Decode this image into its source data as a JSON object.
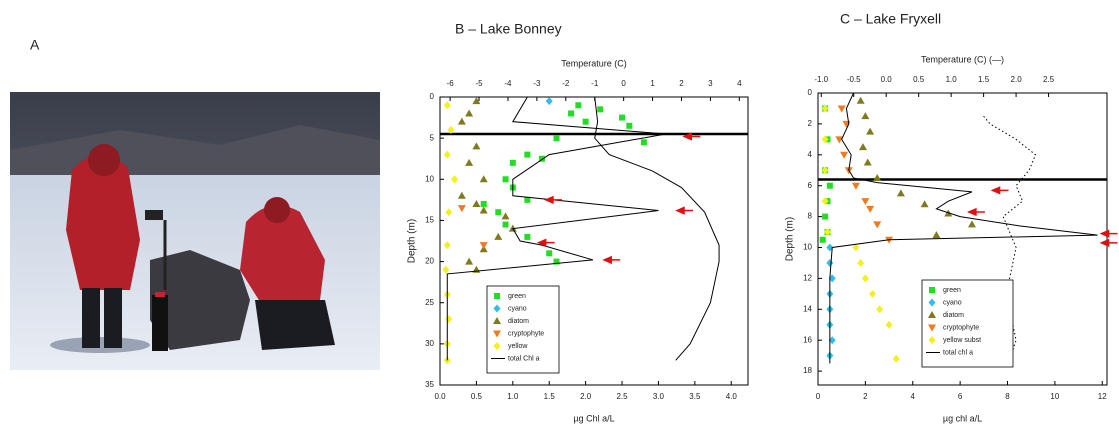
{
  "panel_a": {
    "label": "A"
  },
  "chart_data": [
    {
      "type": "profile",
      "title": "B – Lake Bonney",
      "x_label": "µg Chl a/L",
      "x2_label": "Temperature (C)",
      "y_label": "Depth (m)",
      "xlim": [
        0,
        4.23
      ],
      "xticks": [
        {
          "value": 0,
          "label": "0.0"
        },
        {
          "value": 0.5,
          "label": "0.5"
        },
        {
          "value": 1,
          "label": "1.0"
        },
        {
          "value": 1.5,
          "label": "1.5"
        },
        {
          "value": 2,
          "label": "2.0"
        },
        {
          "value": 2.5,
          "label": "2.5"
        },
        {
          "value": 3,
          "label": "3.0"
        },
        {
          "value": 3.5,
          "label": "3.5"
        },
        {
          "value": 4,
          "label": "4.0"
        }
      ],
      "x2lim": [
        -6.35,
        4.3
      ],
      "x2ticks": [
        -6,
        -5,
        -4,
        -3,
        -2,
        -1,
        0,
        1,
        2,
        3,
        4
      ],
      "ylim": [
        0,
        35
      ],
      "yticks": [
        0,
        5,
        10,
        15,
        20,
        25,
        30,
        35
      ],
      "y_inverted": true,
      "divider_depth": 4.5,
      "legend": "lower left",
      "series": [
        {
          "name": "green",
          "color": "#22dd22",
          "marker": "square",
          "x": [
            1.9,
            2.2,
            1.8,
            2.5,
            2.0,
            2.6,
            1.6,
            2.8,
            1.2,
            1.4,
            1.0,
            0.9,
            1.0,
            1.2,
            0.6,
            0.8,
            0.9,
            1.2,
            1.5,
            1.6
          ],
          "y": [
            1,
            1.5,
            2,
            2.5,
            3,
            3.5,
            5,
            5.5,
            7,
            7.5,
            8,
            10,
            11,
            12.5,
            13,
            14,
            15.5,
            17,
            19,
            20
          ]
        },
        {
          "name": "cyano",
          "color": "#33bbee",
          "marker": "diamond",
          "x": [
            1.5
          ],
          "y": [
            0.5
          ]
        },
        {
          "name": "diatom",
          "color": "#807a1e",
          "marker": "triangle",
          "x": [
            0.5,
            0.4,
            0.3,
            0.5,
            0.4,
            0.6,
            0.3,
            0.5,
            0.6,
            0.9,
            1.0,
            0.8,
            0.6,
            0.4,
            0.5
          ],
          "y": [
            0.5,
            2,
            3,
            6,
            8,
            10,
            12,
            13,
            13.8,
            14.5,
            16,
            17,
            18.5,
            20,
            21
          ]
        },
        {
          "name": "cryptophyte",
          "color": "#f07a20",
          "marker": "down",
          "x": [
            0.3,
            0.6
          ],
          "y": [
            13.5,
            18
          ]
        },
        {
          "name": "yellow",
          "color": "#f4f020",
          "marker": "diamond",
          "x": [
            0.1,
            0.15,
            0.1,
            0.2,
            0.12,
            0.1,
            0.08,
            0.1,
            0.12,
            0.1,
            0.1
          ],
          "y": [
            1,
            4,
            7,
            10,
            14,
            18,
            21,
            24,
            27,
            30,
            32
          ]
        },
        {
          "name": "total Chl a",
          "color": "#000000",
          "marker": "line",
          "x": [
            1.2,
            1.0,
            3.1,
            1.5,
            1.0,
            1.0,
            3.0,
            1.0,
            1.1,
            1.4,
            2.1,
            0.1,
            0.1
          ],
          "y": [
            0,
            3,
            4.5,
            7,
            10,
            12,
            13.8,
            16,
            17.5,
            18,
            19.8,
            21.5,
            32
          ]
        },
        {
          "axis": "x2",
          "color": "#000000",
          "marker": "line",
          "x": [
            -1.0,
            -0.9,
            -1.0,
            -0.5,
            1.0,
            2.0,
            2.8,
            3.3,
            3.3,
            3.0,
            2.3,
            1.8
          ],
          "y": [
            0,
            3,
            5,
            7,
            9,
            11,
            14,
            18,
            20,
            25,
            30,
            32
          ]
        }
      ],
      "arrows": [
        {
          "x": 3.3,
          "y": 4.8
        },
        {
          "x": 1.4,
          "y": 12.5
        },
        {
          "x": 3.2,
          "y": 13.8
        },
        {
          "x": 1.3,
          "y": 17.7
        },
        {
          "x": 2.2,
          "y": 19.8
        }
      ]
    },
    {
      "type": "profile",
      "title": "C – Lake Fryxell",
      "x_label": "µg chl a/L",
      "x2_label": "Temperature (C) (—)",
      "y_label": "Depth (m)",
      "xlim": [
        0,
        12.2
      ],
      "xticks": [
        0,
        2,
        4,
        6,
        8,
        10,
        12
      ],
      "x2lim": [
        -1.05,
        3.4
      ],
      "x2ticks": [
        {
          "value": -1,
          "label": "-1.0"
        },
        {
          "value": -0.5,
          "label": "-0.5"
        },
        {
          "value": 0,
          "label": "0.0"
        },
        {
          "value": 0.5,
          "label": "0.5"
        },
        {
          "value": 1,
          "label": "1.0"
        },
        {
          "value": 1.5,
          "label": "1.5"
        },
        {
          "value": 2,
          "label": "2.0"
        },
        {
          "value": 2.5,
          "label": "2.5"
        }
      ],
      "ylim": [
        0,
        18.9
      ],
      "yticks": [
        0,
        2,
        4,
        6,
        8,
        10,
        12,
        14,
        16,
        18
      ],
      "y_inverted": true,
      "divider_depth": 5.6,
      "legend": "lower center",
      "series": [
        {
          "name": "green",
          "color": "#22dd22",
          "marker": "square",
          "x": [
            0.3,
            0.4,
            0.3,
            0.5,
            0.4,
            0.3,
            0.4,
            0.2
          ],
          "y": [
            1,
            3,
            5,
            6,
            7,
            8,
            9,
            9.5
          ]
        },
        {
          "name": "cyano",
          "color": "#33bbee",
          "marker": "diamond",
          "x": [
            0.5,
            0.5,
            0.6,
            0.5,
            0.5,
            0.5,
            0.6,
            0.5
          ],
          "y": [
            10,
            11,
            12,
            13,
            14,
            15,
            16,
            17
          ]
        },
        {
          "name": "diatom",
          "color": "#807a1e",
          "marker": "triangle",
          "x": [
            1.8,
            2.0,
            2.2,
            1.9,
            2.1,
            2.5,
            3.5,
            4.5,
            5.5,
            6.5,
            5.0
          ],
          "y": [
            0.5,
            1.5,
            2.5,
            3.5,
            4.5,
            5.5,
            6.5,
            7.2,
            7.8,
            8.5,
            9.2
          ]
        },
        {
          "name": "cryptophyte",
          "color": "#f07a20",
          "marker": "down",
          "x": [
            1.0,
            1.2,
            0.9,
            1.1,
            1.3,
            1.6,
            2.0,
            2.2,
            2.5,
            3.0
          ],
          "y": [
            1,
            2,
            3,
            4,
            5,
            6,
            7,
            7.5,
            8.5,
            9.5
          ]
        },
        {
          "name": "yellow subst",
          "color": "#f4f020",
          "marker": "diamond",
          "x": [
            0.3,
            0.3,
            0.3,
            0.3,
            0.4,
            1.6,
            1.8,
            2.0,
            2.3,
            2.6,
            3.0,
            3.3
          ],
          "y": [
            1,
            3,
            5,
            7,
            9,
            10,
            11,
            12,
            13,
            14,
            15,
            17.2
          ]
        },
        {
          "name": "total chl a",
          "color": "#000000",
          "marker": "line",
          "x": [
            1.5,
            1.2,
            1.3,
            1.0,
            1.4,
            1.3,
            1.5,
            2.5,
            6.5,
            5.5,
            5.0,
            6.0,
            8.5,
            11.8,
            3.0,
            0.6,
            0.5,
            0.5,
            0.5
          ],
          "y": [
            0,
            1,
            2,
            3,
            4,
            5,
            5.5,
            5.8,
            6.4,
            7,
            7.5,
            8,
            8.6,
            9.2,
            9.5,
            10,
            12,
            15,
            17.5
          ]
        },
        {
          "axis": "x2",
          "color": "#000000",
          "marker": "dotted",
          "x": [
            1.5,
            1.6,
            1.8,
            2.0,
            2.3,
            2.2,
            2.0,
            2.1,
            1.8,
            1.9,
            2.0,
            1.9,
            1.9,
            2.0,
            1.9
          ],
          "y": [
            1.5,
            2,
            2.5,
            3,
            4,
            5,
            6,
            7,
            8,
            9,
            10,
            12,
            14,
            16,
            17.3
          ]
        }
      ],
      "arrows": [
        {
          "x": 7.2,
          "y": 6.3
        },
        {
          "x": 6.2,
          "y": 7.7
        },
        {
          "x": 11.8,
          "y": 9.1
        },
        {
          "x": 11.8,
          "y": 9.7
        }
      ]
    }
  ]
}
